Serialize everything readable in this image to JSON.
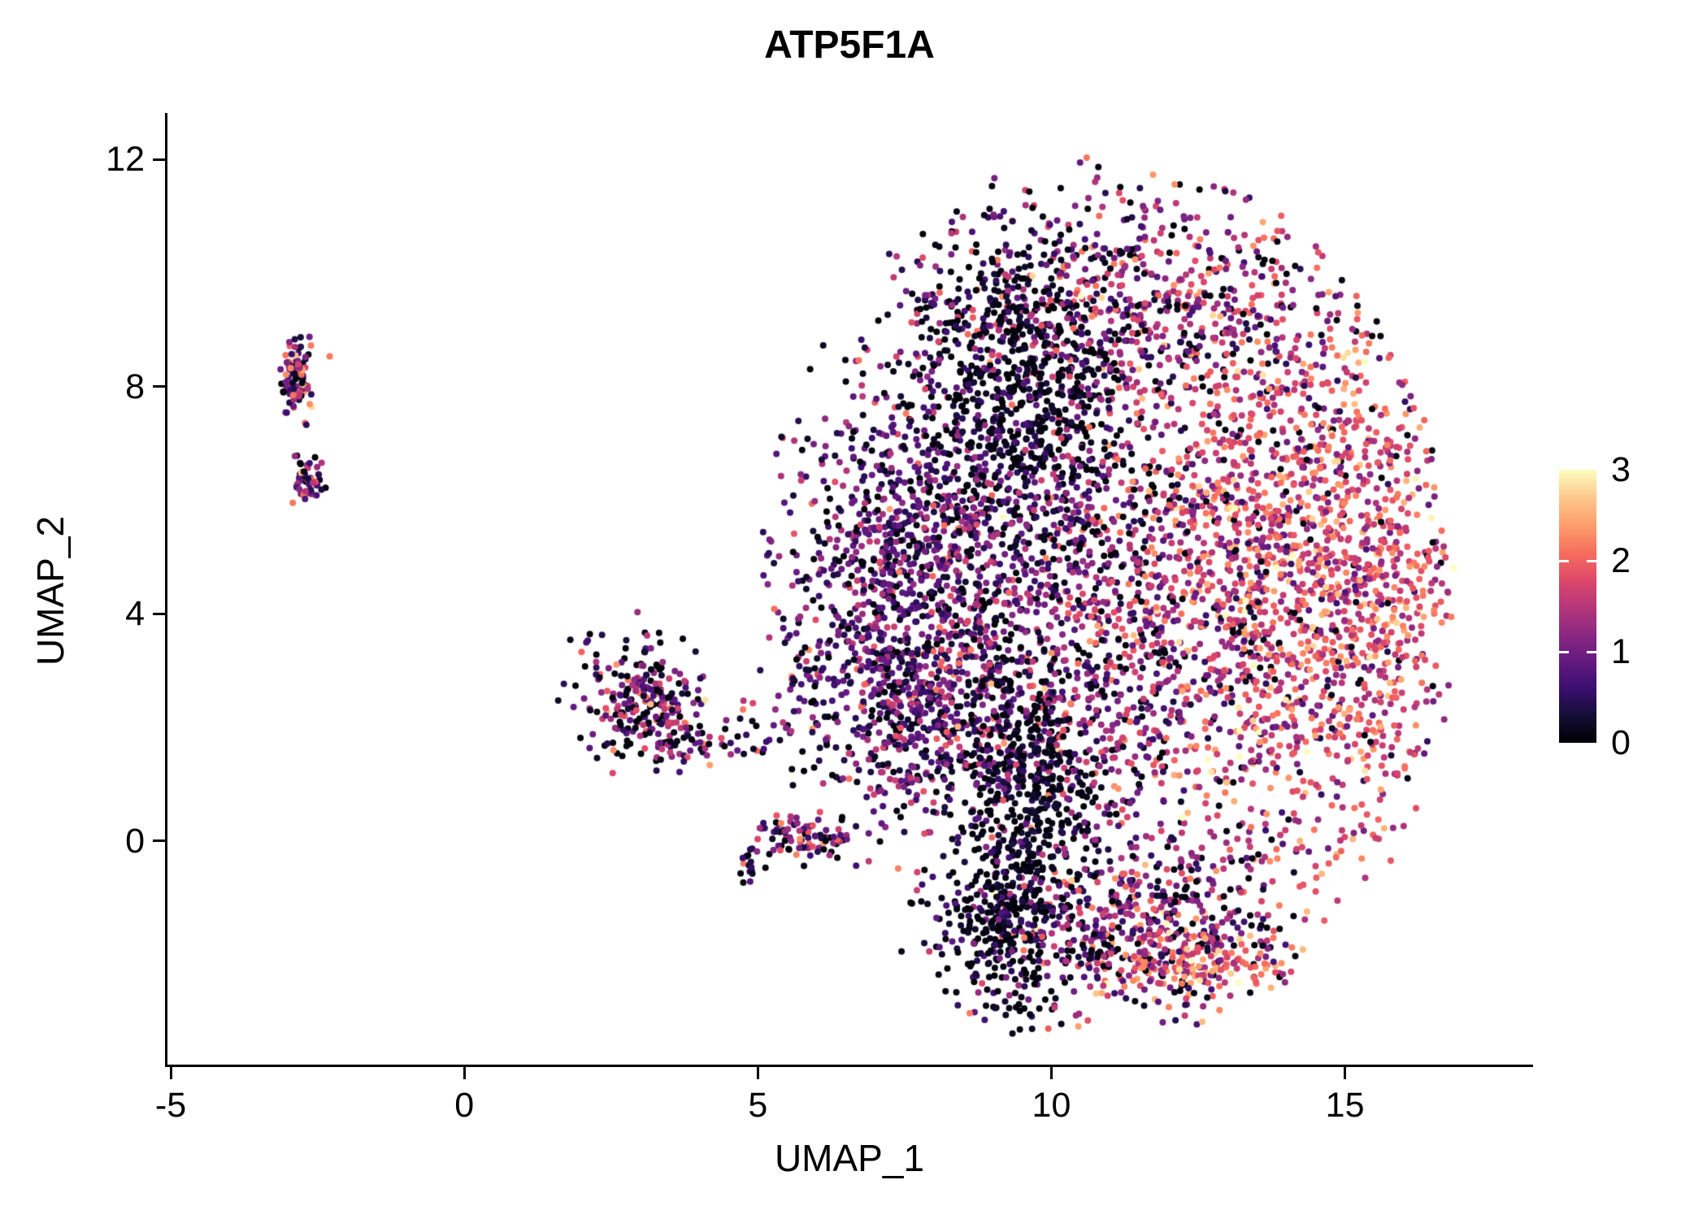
{
  "chart_data": {
    "type": "scatter",
    "title": "ATP5F1A",
    "xlabel": "UMAP_1",
    "ylabel": "UMAP_2",
    "xlim": [
      -5.07,
      18.19
    ],
    "ylim": [
      -3.94,
      12.82
    ],
    "x_ticks": [
      {
        "v": -5,
        "label": "-5"
      },
      {
        "v": 0,
        "label": "0"
      },
      {
        "v": 5,
        "label": "5"
      },
      {
        "v": 10,
        "label": "10"
      },
      {
        "v": 15,
        "label": "15"
      }
    ],
    "y_ticks": [
      {
        "v": 0,
        "label": "0"
      },
      {
        "v": 4,
        "label": "4"
      },
      {
        "v": 8,
        "label": "8"
      },
      {
        "v": 12,
        "label": "12"
      }
    ],
    "colorbar": {
      "min": 0,
      "max": 3,
      "ticks": [
        {
          "v": 3,
          "label": "3"
        },
        {
          "v": 2,
          "label": "2"
        },
        {
          "v": 1,
          "label": "1"
        },
        {
          "v": 0,
          "label": "0"
        }
      ]
    },
    "colormap": "magma",
    "colormap_stops": [
      "#000004",
      "#140e36",
      "#3b0f70",
      "#641a80",
      "#8c2981",
      "#b73779",
      "#de4968",
      "#f7705c",
      "#fe9f6d",
      "#fec98d",
      "#fcfdbf"
    ],
    "point_radius_px": 4,
    "seed": 42,
    "clip_ellipse": {
      "cx": 10.9,
      "cy": 4.2,
      "rx": 6.0,
      "ry": 7.9
    },
    "clusters": [
      {
        "name": "left-small-top",
        "cx": -2.85,
        "cy": 8.15,
        "sx": 0.13,
        "sy": 0.36,
        "count": 95,
        "expr": {
          "mean": 1.35,
          "sd": 0.85,
          "zero_frac": 0.12
        }
      },
      {
        "name": "left-small-bottom",
        "cx": -2.68,
        "cy": 6.35,
        "sx": 0.11,
        "sy": 0.22,
        "count": 55,
        "expr": {
          "mean": 1.15,
          "sd": 0.75,
          "zero_frac": 0.15
        }
      },
      {
        "name": "mid-left-blob",
        "cx": 3.0,
        "cy": 2.45,
        "sx": 0.48,
        "sy": 0.55,
        "count": 240,
        "expr": {
          "mean": 0.95,
          "sd": 0.75,
          "zero_frac": 0.22
        }
      },
      {
        "name": "mid-arm",
        "cx": 4.4,
        "cy": 1.85,
        "sx": 0.7,
        "sy": 0.28,
        "count": 70,
        "expr": {
          "mean": 1.0,
          "sd": 0.7,
          "zero_frac": 0.18
        }
      },
      {
        "name": "mid-lower-strip",
        "cx": 5.75,
        "cy": 0.05,
        "sx": 0.42,
        "sy": 0.2,
        "count": 85,
        "expr": {
          "mean": 1.05,
          "sd": 0.7,
          "zero_frac": 0.15
        }
      },
      {
        "name": "mid-small-dots",
        "cx": 4.85,
        "cy": -0.5,
        "sx": 0.12,
        "sy": 0.17,
        "count": 14,
        "expr": {
          "mean": 0.8,
          "sd": 0.6,
          "zero_frac": 0.2
        }
      },
      {
        "name": "main-left-wing",
        "cx": 7.5,
        "cy": 4.9,
        "sx": 1.05,
        "sy": 1.6,
        "count": 850,
        "expr": {
          "mean": 0.85,
          "sd": 0.5,
          "zero_frac": 0.12
        },
        "clip": true
      },
      {
        "name": "main-lower-left",
        "cx": 7.7,
        "cy": 2.2,
        "sx": 0.95,
        "sy": 0.95,
        "count": 420,
        "expr": {
          "mean": 0.9,
          "sd": 0.55,
          "zero_frac": 0.15
        },
        "clip": true
      },
      {
        "name": "main-core",
        "cx": 10.4,
        "cy": 3.9,
        "sx": 1.9,
        "sy": 2.3,
        "count": 1250,
        "expr": {
          "mean": 1.15,
          "sd": 0.6,
          "zero_frac": 0.15
        },
        "clip": true
      },
      {
        "name": "main-right",
        "cx": 13.9,
        "cy": 4.6,
        "sx": 1.5,
        "sy": 2.6,
        "count": 1500,
        "expr": {
          "mean": 1.75,
          "sd": 0.55,
          "zero_frac": 0.05
        },
        "clip": true
      },
      {
        "name": "main-right-edge",
        "cx": 15.5,
        "cy": 4.7,
        "sx": 0.55,
        "sy": 1.9,
        "count": 260,
        "expr": {
          "mean": 1.9,
          "sd": 0.5,
          "zero_frac": 0.04
        },
        "clip": true
      },
      {
        "name": "main-top",
        "cx": 11.4,
        "cy": 9.4,
        "sx": 1.8,
        "sy": 1.25,
        "count": 680,
        "expr": {
          "mean": 1.25,
          "sd": 0.65,
          "zero_frac": 0.18
        },
        "clip": true
      },
      {
        "name": "main-dark-upper",
        "cx": 9.4,
        "cy": 8.0,
        "sx": 0.95,
        "sy": 1.35,
        "count": 720,
        "expr": {
          "mean": 0.25,
          "sd": 0.35,
          "zero_frac": 0.5
        },
        "clip": true
      },
      {
        "name": "main-dark-lower",
        "cx": 9.6,
        "cy": 0.9,
        "sx": 0.6,
        "sy": 1.15,
        "count": 470,
        "expr": {
          "mean": 0.25,
          "sd": 0.35,
          "zero_frac": 0.5
        },
        "clip": true
      },
      {
        "name": "main-bottom-lobe",
        "cx": 11.5,
        "cy": -1.5,
        "sx": 1.3,
        "sy": 0.85,
        "count": 520,
        "expr": {
          "mean": 1.15,
          "sd": 0.7,
          "zero_frac": 0.18
        },
        "clip": true
      },
      {
        "name": "main-bottom-left-dark",
        "cx": 9.2,
        "cy": -1.6,
        "sx": 0.55,
        "sy": 0.8,
        "count": 260,
        "expr": {
          "mean": 0.3,
          "sd": 0.35,
          "zero_frac": 0.45
        },
        "clip": true
      },
      {
        "name": "main-bottom-edge-hot",
        "cx": 12.5,
        "cy": -2.1,
        "sx": 0.85,
        "sy": 0.3,
        "count": 140,
        "expr": {
          "mean": 2.05,
          "sd": 0.45,
          "zero_frac": 0.03
        },
        "clip": true
      }
    ]
  }
}
